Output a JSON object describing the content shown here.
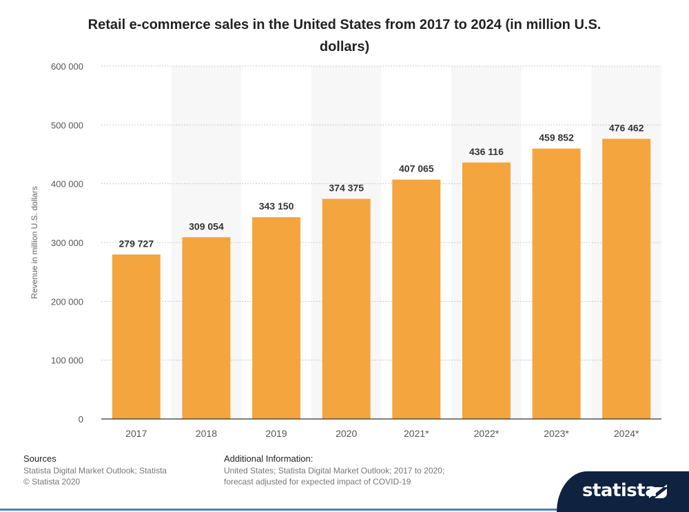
{
  "chart_data": {
    "type": "bar",
    "title": "Retail e-commerce sales in the United States from 2017 to 2024 (in million U.S. dollars)",
    "xlabel": "",
    "ylabel": "Revenue in million U.S. dollars",
    "categories": [
      "2017",
      "2018",
      "2019",
      "2020",
      "2021*",
      "2022*",
      "2023*",
      "2024*"
    ],
    "values": [
      279727,
      309054,
      343150,
      374375,
      407065,
      436116,
      459852,
      476462
    ],
    "value_labels": [
      "279 727",
      "309 054",
      "343 150",
      "374 375",
      "407 065",
      "436 116",
      "459 852",
      "476 462"
    ],
    "ylim": [
      0,
      600000
    ],
    "yticks": [
      0,
      100000,
      200000,
      300000,
      400000,
      500000,
      600000
    ],
    "ytick_labels": [
      "0",
      "100 000",
      "200 000",
      "300 000",
      "400 000",
      "500 000",
      "600 000"
    ],
    "grid": true,
    "legend": "none",
    "bar_color": "#f4a53e"
  },
  "footer": {
    "sources_label": "Sources",
    "sources_lines": [
      "Statista Digital Market Outlook; Statista",
      "© Statista 2020"
    ],
    "additional_label": "Additional Information:",
    "additional_lines": [
      "United States; Statista Digital Market Outlook; 2017 to 2020;",
      "forecast adjusted for expected impact of COVID-19"
    ]
  },
  "brand": {
    "name": "statista",
    "color": "#0f2240",
    "accent": "#4a7fc1"
  }
}
